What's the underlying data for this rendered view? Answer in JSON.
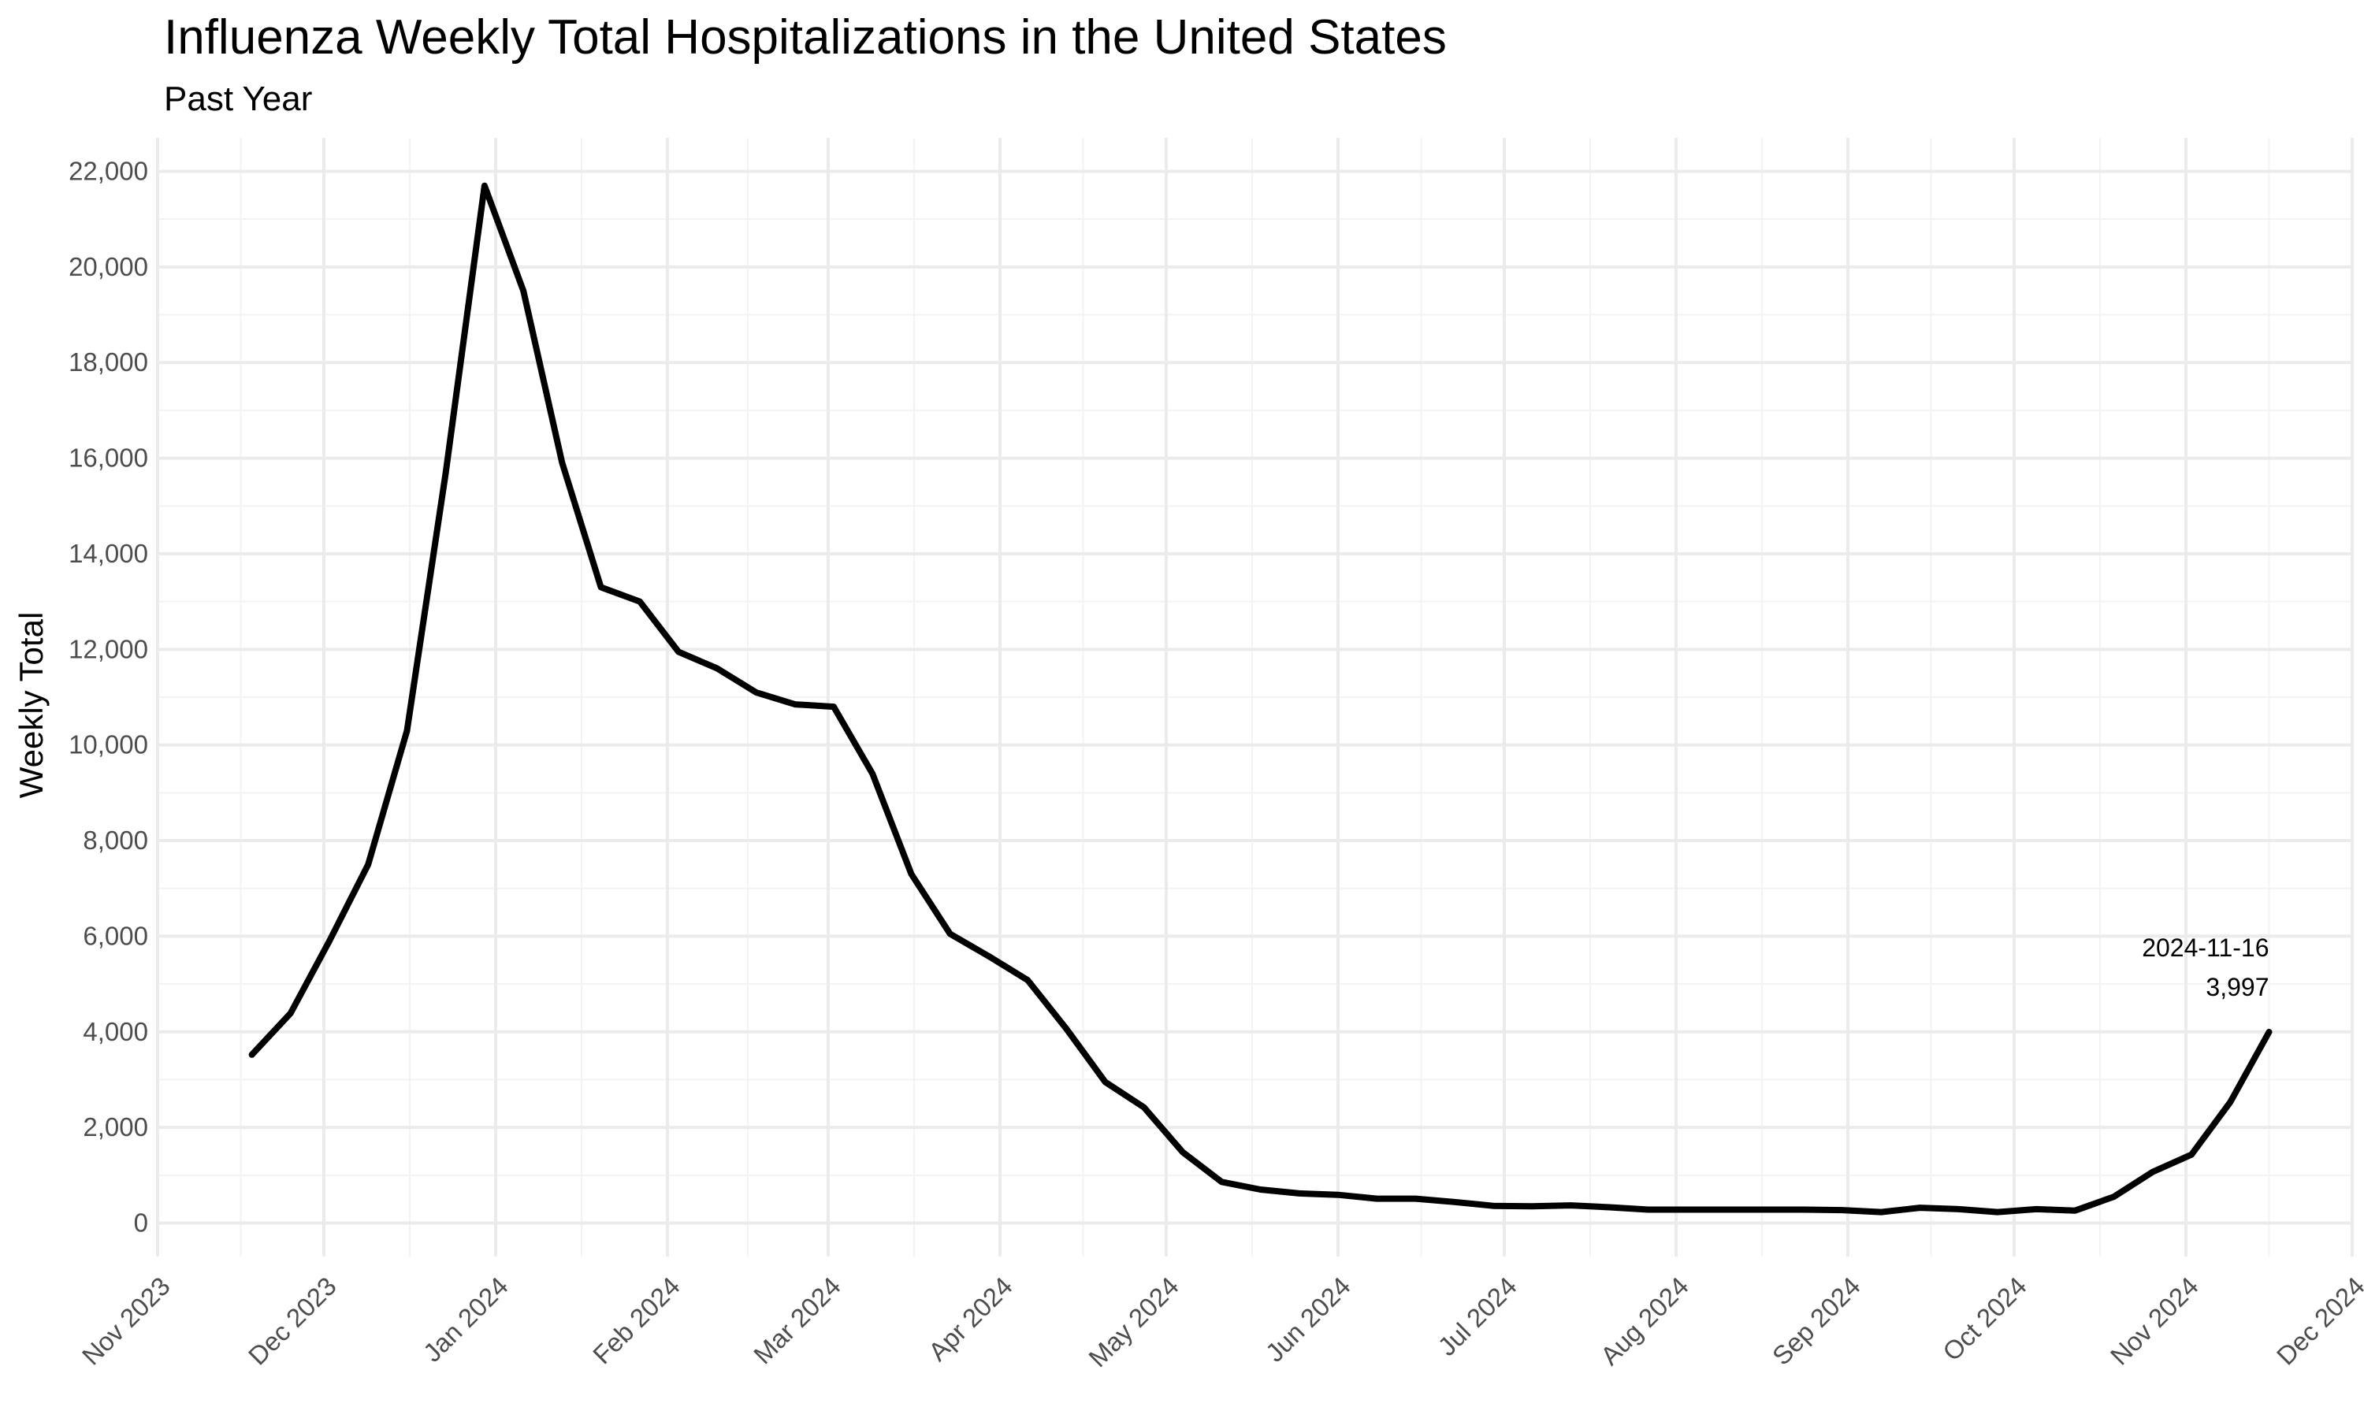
{
  "chart_data": {
    "type": "line",
    "title": "Influenza Weekly Total Hospitalizations in the United States",
    "subtitle": "Past Year",
    "xlabel": "",
    "ylabel": "Weekly Total",
    "x_range": [
      "2023-11-01",
      "2024-12-01"
    ],
    "ylim": [
      -700,
      22700
    ],
    "grid": true,
    "y_ticks": [
      0,
      2000,
      4000,
      6000,
      8000,
      10000,
      12000,
      14000,
      16000,
      18000,
      20000,
      22000
    ],
    "y_tick_labels": [
      "0",
      "2,000",
      "4,000",
      "6,000",
      "8,000",
      "10,000",
      "12,000",
      "14,000",
      "16,000",
      "18,000",
      "20,000",
      "22,000"
    ],
    "x_ticks": [
      "2023-11-01",
      "2023-12-01",
      "2024-01-01",
      "2024-02-01",
      "2024-03-01",
      "2024-04-01",
      "2024-05-01",
      "2024-06-01",
      "2024-07-01",
      "2024-08-01",
      "2024-09-01",
      "2024-10-01",
      "2024-11-01",
      "2024-12-01"
    ],
    "x_tick_labels": [
      "Nov 2023",
      "Dec 2023",
      "Jan 2024",
      "Feb 2024",
      "Mar 2024",
      "Apr 2024",
      "May 2024",
      "Jun 2024",
      "Jul 2024",
      "Aug 2024",
      "Sep 2024",
      "Oct 2024",
      "Nov 2024",
      "Dec 2024"
    ],
    "x": [
      "2023-11-18",
      "2023-11-25",
      "2023-12-02",
      "2023-12-09",
      "2023-12-16",
      "2023-12-23",
      "2023-12-30",
      "2024-01-06",
      "2024-01-13",
      "2024-01-20",
      "2024-01-27",
      "2024-02-03",
      "2024-02-10",
      "2024-02-17",
      "2024-02-24",
      "2024-03-02",
      "2024-03-09",
      "2024-03-16",
      "2024-03-23",
      "2024-03-30",
      "2024-04-06",
      "2024-04-13",
      "2024-04-20",
      "2024-04-27",
      "2024-05-04",
      "2024-05-11",
      "2024-05-18",
      "2024-05-25",
      "2024-06-01",
      "2024-06-08",
      "2024-06-15",
      "2024-06-22",
      "2024-06-29",
      "2024-07-06",
      "2024-07-13",
      "2024-07-20",
      "2024-07-27",
      "2024-08-03",
      "2024-08-10",
      "2024-08-17",
      "2024-08-24",
      "2024-08-31",
      "2024-09-07",
      "2024-09-14",
      "2024-09-21",
      "2024-09-28",
      "2024-10-05",
      "2024-10-12",
      "2024-10-19",
      "2024-10-26",
      "2024-11-02",
      "2024-11-09",
      "2024-11-16"
    ],
    "series": [
      {
        "name": "",
        "color": "#000000",
        "values": [
          3520,
          4390,
          5900,
          7500,
          10300,
          15700,
          21700,
          19500,
          15900,
          13300,
          13000,
          11950,
          11600,
          11100,
          10850,
          10800,
          9400,
          7300,
          6050,
          5580,
          5080,
          4060,
          2950,
          2420,
          1480,
          860,
          700,
          620,
          590,
          510,
          510,
          440,
          360,
          350,
          370,
          330,
          280,
          280,
          280,
          280,
          280,
          270,
          230,
          320,
          290,
          230,
          290,
          260,
          550,
          1070,
          1430,
          2530,
          3997
        ]
      }
    ],
    "annotations": [
      {
        "date": "2024-11-16",
        "label": "2024-11-16",
        "value_label": "3,997",
        "value": 3997
      }
    ]
  }
}
